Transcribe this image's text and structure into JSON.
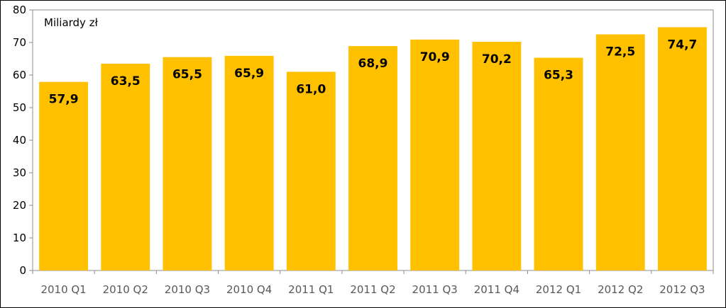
{
  "chart_data": {
    "type": "bar",
    "unit_label": "Miliardy zł",
    "categories": [
      "2010 Q1",
      "2010 Q2",
      "2010 Q3",
      "2010 Q4",
      "2011 Q1",
      "2011 Q2",
      "2011 Q3",
      "2011 Q4",
      "2012 Q1",
      "2012 Q2",
      "2012 Q3"
    ],
    "values": [
      57.9,
      63.5,
      65.5,
      65.9,
      61.0,
      68.9,
      70.9,
      70.2,
      65.3,
      72.5,
      74.7
    ],
    "value_labels": [
      "57,9",
      "63,5",
      "65,5",
      "65,9",
      "61,0",
      "68,9",
      "70,9",
      "70,2",
      "65,3",
      "72,5",
      "74,7"
    ],
    "ylim": [
      0,
      80
    ],
    "yticks": [
      0,
      10,
      20,
      30,
      40,
      50,
      60,
      70,
      80
    ],
    "grid": false,
    "legend": "none",
    "bar_color": "#FFC000"
  }
}
